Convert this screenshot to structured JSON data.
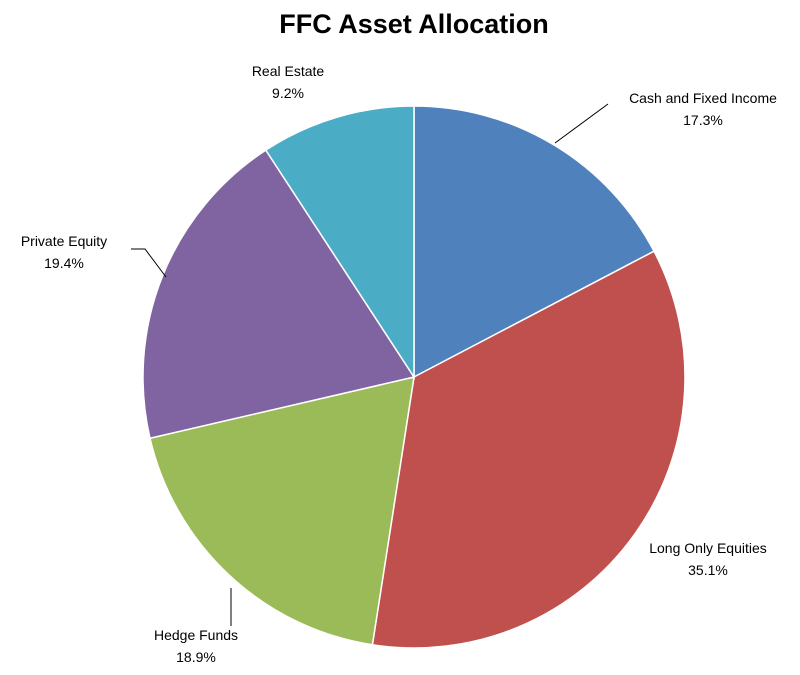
{
  "chart_data": {
    "type": "pie",
    "title": "FFC Asset Allocation",
    "legend": "none",
    "start_angle_deg": 0,
    "direction": "clockwise",
    "slices": [
      {
        "label": "Cash and Fixed Income",
        "value": 17.3,
        "value_label": "17.3%",
        "color": "#4F81BD"
      },
      {
        "label": "Long Only Equities",
        "value": 35.1,
        "value_label": "35.1%",
        "color": "#C0504D"
      },
      {
        "label": "Hedge Funds",
        "value": 18.9,
        "value_label": "18.9%",
        "color": "#9BBB59"
      },
      {
        "label": "Private Equity",
        "value": 19.4,
        "value_label": "19.4%",
        "color": "#8064A2"
      },
      {
        "label": "Real Estate",
        "value": 9.2,
        "value_label": "9.2%",
        "color": "#4BACC6"
      }
    ]
  }
}
